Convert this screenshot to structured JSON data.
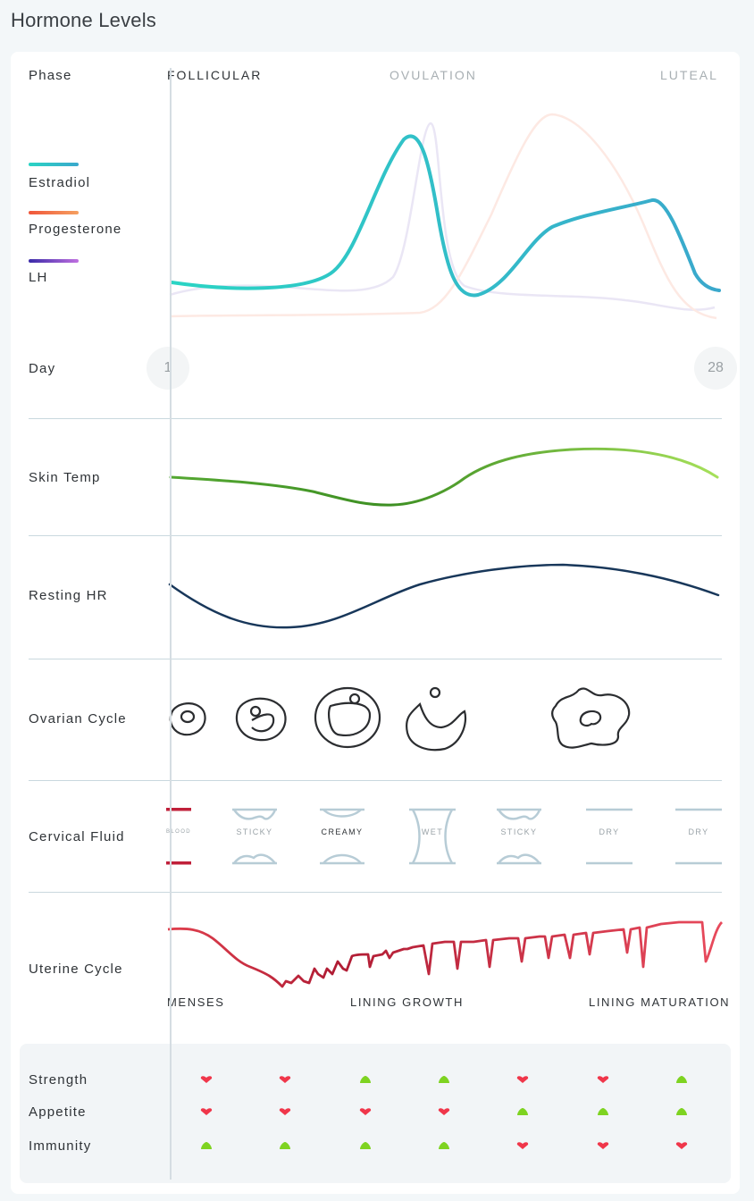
{
  "title": "Hormone Levels",
  "phase": {
    "label": "Phase",
    "items": [
      {
        "name": "FOLLICULAR",
        "color": "#2f3337"
      },
      {
        "name": "OVULATION",
        "color": "#a8afb3"
      },
      {
        "name": "LUTEAL",
        "color": "#a8afb3"
      }
    ]
  },
  "legend": [
    {
      "name": "Estradiol",
      "color_start": "#2ad4c4",
      "color_end": "#3aa8cc"
    },
    {
      "name": "Progesterone",
      "color_start": "#f0563a",
      "color_end": "#f5a060"
    },
    {
      "name": "LH",
      "color_start": "#3a2aa8",
      "color_end": "#c070e0"
    }
  ],
  "day": {
    "label": "Day",
    "start": "1",
    "end": "28"
  },
  "rows": {
    "skin_temp": "Skin Temp",
    "resting_hr": "Resting HR",
    "ovarian_cycle": "Ovarian Cycle",
    "cervical_fluid": "Cervical Fluid",
    "uterine_cycle": "Uterine Cycle"
  },
  "cervical_fluid": [
    "BLOOD",
    "STICKY",
    "CREAMY",
    "WET",
    "STICKY",
    "DRY",
    "DRY"
  ],
  "uterine_phases": [
    "MENSES",
    "LINING GROWTH",
    "LINING MATURATION"
  ],
  "stats": [
    {
      "label": "Strength",
      "values": [
        "down",
        "down",
        "up",
        "up",
        "down",
        "down",
        "up"
      ]
    },
    {
      "label": "Appetite",
      "values": [
        "down",
        "down",
        "down",
        "down",
        "up",
        "up",
        "up"
      ]
    },
    {
      "label": "Immunity",
      "values": [
        "up",
        "up",
        "up",
        "up",
        "down",
        "down",
        "down"
      ]
    }
  ],
  "colors": {
    "up": "#7ed321",
    "down": "#f0364a",
    "blood": "#c0203a",
    "fluid": "#b7ccd6"
  }
}
